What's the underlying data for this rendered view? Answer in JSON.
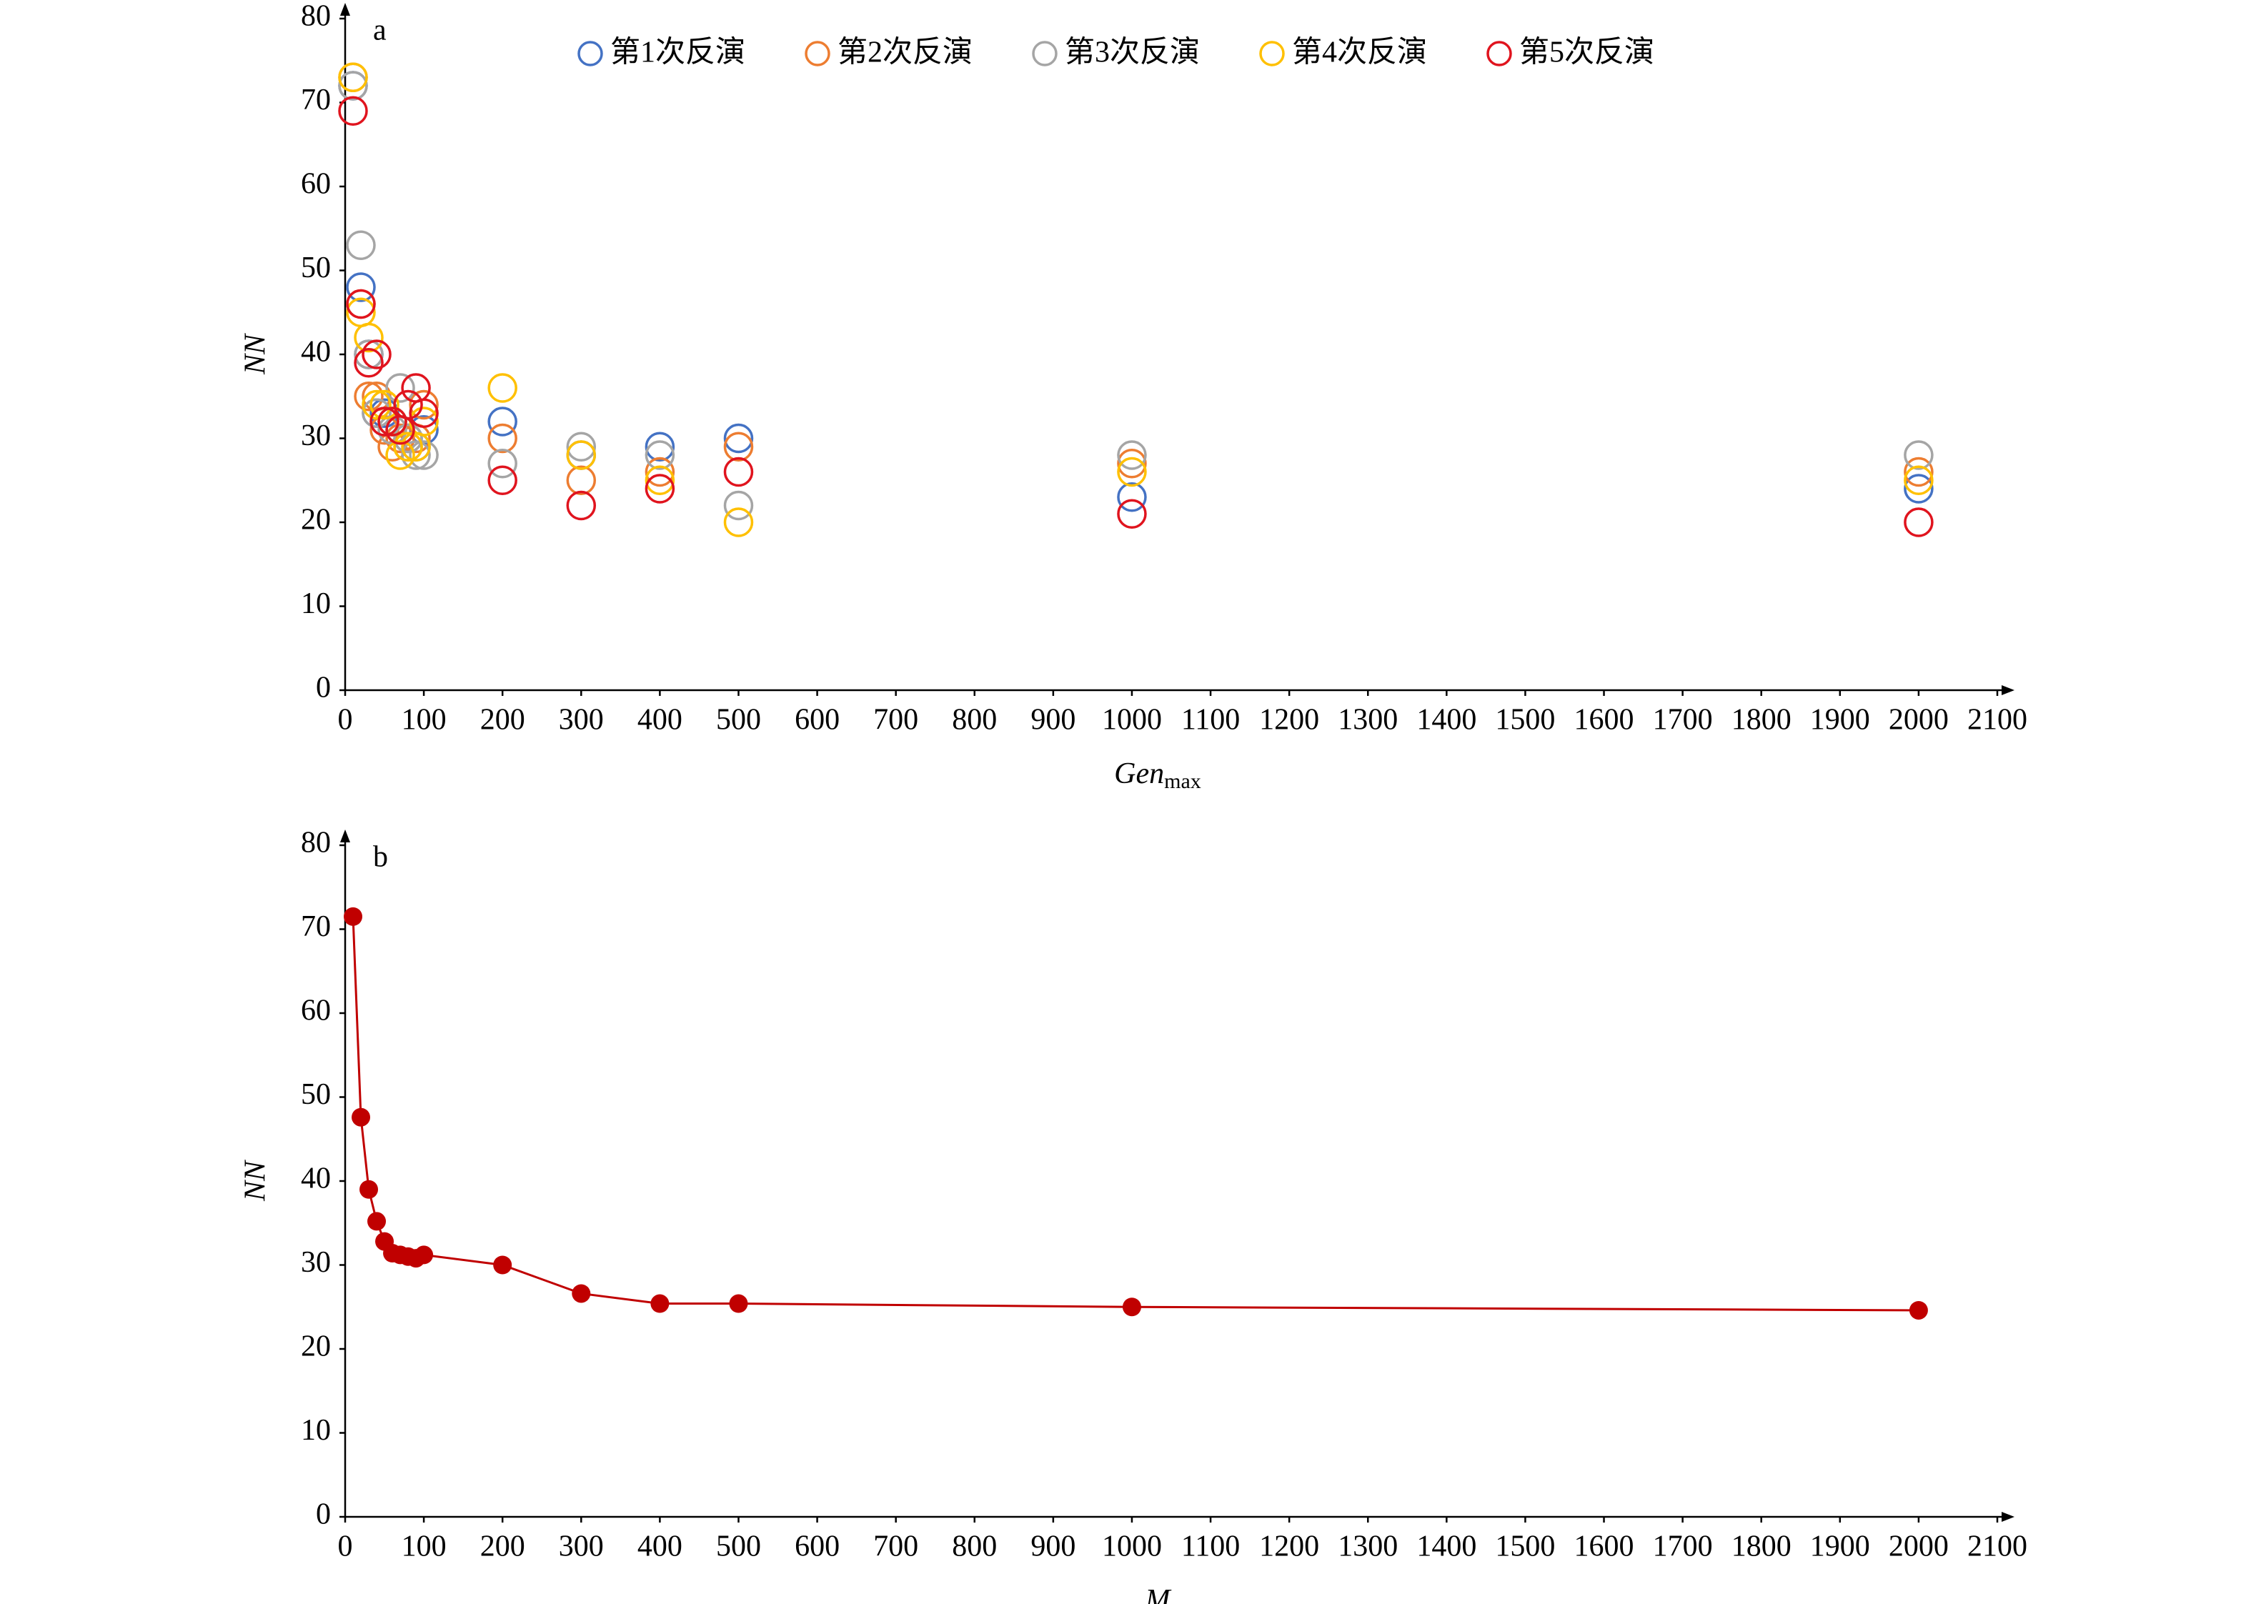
{
  "chart_data": [
    {
      "type": "scatter",
      "label": "a",
      "xlabel": "Gen",
      "xlabel_sub": "max",
      "ylabel": "NN",
      "x": [
        10,
        20,
        30,
        40,
        50,
        60,
        70,
        80,
        90,
        100,
        200,
        300,
        400,
        500,
        1000,
        2000
      ],
      "series": [
        {
          "name": "第1次反演",
          "color": "#4472c4",
          "values": [
            72,
            48,
            40,
            33,
            33,
            32,
            31,
            30,
            29,
            31,
            32,
            28,
            29,
            30,
            23,
            24
          ]
        },
        {
          "name": "第2次反演",
          "color": "#ed7d31",
          "values": [
            73,
            46,
            35,
            35,
            31,
            29,
            30,
            29,
            30,
            34,
            30,
            25,
            26,
            29,
            27,
            26
          ]
        },
        {
          "name": "第3次反演",
          "color": "#a5a5a5",
          "values": [
            72,
            53,
            40,
            33,
            32,
            31,
            36,
            30,
            28,
            28,
            27,
            29,
            28,
            22,
            28,
            28
          ]
        },
        {
          "name": "第4次反演",
          "color": "#ffc000",
          "values": [
            73,
            45,
            42,
            34,
            34,
            32,
            28,
            29,
            29,
            32,
            36,
            28,
            25,
            20,
            26,
            25
          ]
        },
        {
          "name": "第5次反演",
          "color": "#e0141e",
          "values": [
            69,
            46,
            39,
            40,
            32,
            32,
            31,
            34,
            36,
            33,
            25,
            22,
            24,
            26,
            21,
            20
          ]
        }
      ],
      "legend": "top",
      "xlim": [
        0,
        2100
      ],
      "xticks": [
        0,
        100,
        200,
        300,
        400,
        500,
        600,
        700,
        800,
        900,
        1000,
        1100,
        1200,
        1300,
        1400,
        1500,
        1600,
        1700,
        1800,
        1900,
        2000,
        2100
      ],
      "ylim": [
        0,
        80
      ],
      "yticks": [
        0,
        10,
        20,
        30,
        40,
        50,
        60,
        70,
        80
      ],
      "grid": false
    },
    {
      "type": "line",
      "label": "b",
      "xlabel": "M",
      "ylabel": "NN",
      "x": [
        10,
        20,
        30,
        40,
        50,
        60,
        70,
        80,
        90,
        100,
        200,
        300,
        400,
        500,
        1000,
        2000
      ],
      "color": "#c00000",
      "values": [
        71.5,
        47.6,
        39,
        35.2,
        32.8,
        31.4,
        31.2,
        31,
        30.8,
        31.2,
        30,
        26.6,
        25.4,
        25.4,
        25,
        24.6
      ],
      "xlim": [
        0,
        2100
      ],
      "xticks": [
        0,
        100,
        200,
        300,
        400,
        500,
        600,
        700,
        800,
        900,
        1000,
        1100,
        1200,
        1300,
        1400,
        1500,
        1600,
        1700,
        1800,
        1900,
        2000,
        2100
      ],
      "ylim": [
        0,
        80
      ],
      "yticks": [
        0,
        10,
        20,
        30,
        40,
        50,
        60,
        70,
        80
      ],
      "grid": false
    }
  ]
}
